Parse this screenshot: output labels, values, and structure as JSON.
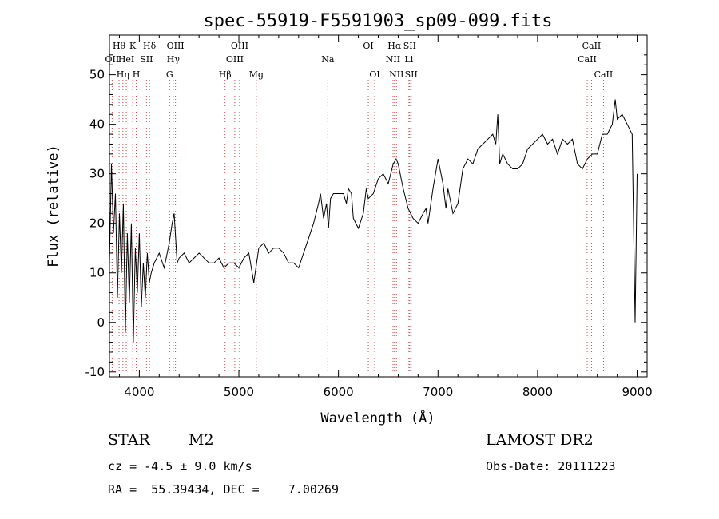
{
  "chart_data": {
    "type": "line",
    "title": "spec-55919-F5591903_sp09-099.fits",
    "xlabel": "Wavelength (Å)",
    "ylabel": "Flux (relative)",
    "xlim": [
      3700,
      9100
    ],
    "ylim": [
      -11,
      58
    ],
    "xticks": [
      4000,
      5000,
      6000,
      7000,
      8000,
      9000
    ],
    "yticks": [
      -10,
      0,
      10,
      20,
      30,
      40,
      50
    ],
    "grid": false,
    "series": [
      {
        "x": [
          3700,
          3720,
          3740,
          3760,
          3780,
          3800,
          3820,
          3840,
          3860,
          3880,
          3900,
          3920,
          3940,
          3960,
          3980,
          4000,
          4020,
          4040,
          4060,
          4080,
          4100,
          4120,
          4150,
          4200,
          4250,
          4300,
          4330,
          4350,
          4380,
          4400,
          4450,
          4500,
          4550,
          4600,
          4650,
          4700,
          4750,
          4800,
          4850,
          4900,
          4950,
          5000,
          5050,
          5100,
          5150,
          5200,
          5250,
          5300,
          5350,
          5400,
          5450,
          5500,
          5550,
          5600,
          5650,
          5700,
          5750,
          5800,
          5820,
          5850,
          5880,
          5900,
          5920,
          5950,
          6000,
          6050,
          6080,
          6100,
          6130,
          6150,
          6200,
          6250,
          6280,
          6300,
          6350,
          6400,
          6450,
          6500,
          6550,
          6580,
          6600,
          6650,
          6700,
          6750,
          6800,
          6850,
          6880,
          6900,
          6950,
          7000,
          7050,
          7080,
          7100,
          7150,
          7200,
          7250,
          7300,
          7350,
          7400,
          7450,
          7500,
          7550,
          7580,
          7600,
          7620,
          7650,
          7700,
          7750,
          7800,
          7850,
          7900,
          7950,
          8000,
          8050,
          8100,
          8150,
          8200,
          8250,
          8300,
          8350,
          8400,
          8450,
          8500,
          8550,
          8600,
          8650,
          8700,
          8750,
          8780,
          8800,
          8850,
          8900,
          8950,
          8980,
          9000
        ],
        "y": [
          12,
          32,
          18,
          26,
          5,
          22,
          10,
          24,
          -2,
          18,
          4,
          20,
          -4,
          15,
          6,
          18,
          3,
          12,
          5,
          14,
          8,
          10,
          12,
          14,
          11,
          16,
          20,
          22,
          12,
          13,
          14,
          12,
          13,
          14,
          13,
          12,
          12,
          13,
          11,
          12,
          12,
          11,
          13,
          14,
          8,
          15,
          16,
          14,
          15,
          15,
          14,
          12,
          12,
          11,
          14,
          17,
          20,
          24,
          26,
          21,
          24,
          19,
          25,
          26,
          26,
          26,
          24,
          27,
          26,
          21,
          19,
          22,
          27,
          25,
          26,
          29,
          30,
          28,
          32,
          33,
          32,
          27,
          23,
          21,
          20,
          22,
          23,
          20,
          27,
          33,
          28,
          23,
          27,
          22,
          24,
          31,
          33,
          32,
          35,
          36,
          37,
          38,
          36,
          42,
          32,
          34,
          32,
          31,
          31,
          32,
          35,
          36,
          37,
          38,
          36,
          37,
          34,
          37,
          36,
          37,
          32,
          31,
          33,
          34,
          34,
          38,
          38,
          40,
          45,
          41,
          42,
          40,
          38,
          0,
          30
        ]
      }
    ],
    "emission_lines": [
      {
        "wl": 3727,
        "label": "OII",
        "row": 2
      },
      {
        "wl": 3797,
        "label": "Hθ",
        "row": 1
      },
      {
        "wl": 3835,
        "label": "Hη",
        "row": 3
      },
      {
        "wl": 3869,
        "label": "HeI",
        "row": 2
      },
      {
        "wl": 3934,
        "label": "K",
        "row": 1
      },
      {
        "wl": 3969,
        "label": "H",
        "row": 3
      },
      {
        "wl": 4072,
        "label": "SII",
        "row": 2
      },
      {
        "wl": 4102,
        "label": "Hδ",
        "row": 1
      },
      {
        "wl": 4304,
        "label": "G",
        "row": 3
      },
      {
        "wl": 4341,
        "label": "Hγ",
        "row": 2
      },
      {
        "wl": 4363,
        "label": "OIII",
        "row": 1
      },
      {
        "wl": 4861,
        "label": "Hβ",
        "row": 3
      },
      {
        "wl": 4959,
        "label": "OIII",
        "row": 2
      },
      {
        "wl": 5007,
        "label": "OIII",
        "row": 1
      },
      {
        "wl": 5175,
        "label": "Mg",
        "row": 3
      },
      {
        "wl": 5893,
        "label": "Na",
        "row": 2
      },
      {
        "wl": 6300,
        "label": "OI",
        "row": 1
      },
      {
        "wl": 6364,
        "label": "OI",
        "row": 3
      },
      {
        "wl": 6548,
        "label": "NII",
        "row": 2
      },
      {
        "wl": 6563,
        "label": "Hα",
        "row": 1
      },
      {
        "wl": 6583,
        "label": "NII",
        "row": 3
      },
      {
        "wl": 6708,
        "label": "Li",
        "row": 2
      },
      {
        "wl": 6716,
        "label": "SII",
        "row": 1
      },
      {
        "wl": 6731,
        "label": "SII",
        "row": 3
      },
      {
        "wl": 8498,
        "label": "CaII",
        "row": 2
      },
      {
        "wl": 8542,
        "label": "CaII",
        "row": 1
      },
      {
        "wl": 8662,
        "label": "CaII",
        "row": 3
      }
    ],
    "colors": {
      "spectrum": "#000000",
      "emission_line": "#d04a4a",
      "absorption_line": "#888888"
    }
  },
  "info": {
    "object_class": "STAR",
    "subclass": "M2",
    "survey": "LAMOST DR2",
    "redshift": "cz = -4.5 ± 9.0 km/s",
    "obs_date": "Obs-Date: 20111223",
    "coords": "RA =  55.39434, DEC =    7.00269"
  }
}
